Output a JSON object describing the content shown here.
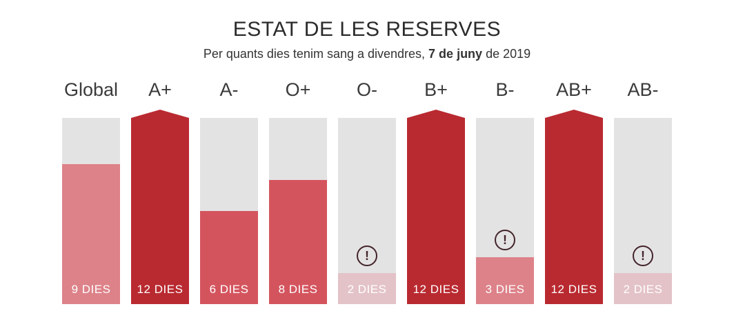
{
  "header": {
    "title": "ESTAT DE LES RESERVES",
    "subtitle_prefix": "Per quants dies tenim sang a divendres, ",
    "subtitle_bold": "7 de juny",
    "subtitle_suffix": " de 2019"
  },
  "chart_data": {
    "type": "bar",
    "title": "ESTAT DE LES RESERVES",
    "subtitle": "Per quants dies tenim sang a divendres, 7 de juny de 2019",
    "unit_label": "DIES",
    "ylim": [
      0,
      12
    ],
    "grid": false,
    "legend": false,
    "categories": [
      "Global",
      "A+",
      "A-",
      "O+",
      "O-",
      "B+",
      "B-",
      "AB+",
      "AB-"
    ],
    "values": [
      9,
      12,
      6,
      8,
      2,
      12,
      3,
      12,
      2
    ],
    "bar_labels": [
      "9 DIES",
      "12 DIES",
      "6 DIES",
      "8 DIES",
      "2 DIES",
      "12 DIES",
      "3 DIES",
      "12 DIES",
      "2 DIES"
    ],
    "full_marker": [
      false,
      true,
      false,
      false,
      false,
      true,
      false,
      true,
      false
    ],
    "warning_marker": [
      false,
      false,
      false,
      false,
      true,
      false,
      true,
      false,
      true
    ],
    "fill_colors": [
      "#dd8289",
      "#b92a30",
      "#d4545e",
      "#d4545e",
      "#e3c3c8",
      "#b92a30",
      "#dd8289",
      "#b92a30",
      "#e3c3c8"
    ]
  },
  "colors": {
    "track_gray": "#e4e3e3",
    "full_dark_red": "#b92a30",
    "medium_red": "#d4545e",
    "pink": "#dd8289",
    "pale_pink": "#e3c3c8",
    "warning_icon": "#42232a",
    "bar_label_text": "#ffffff"
  },
  "warning_icon_glyph": "!"
}
